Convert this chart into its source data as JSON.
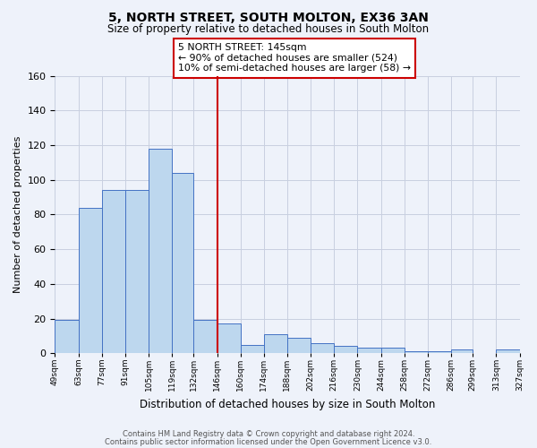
{
  "title": "5, NORTH STREET, SOUTH MOLTON, EX36 3AN",
  "subtitle": "Size of property relative to detached houses in South Molton",
  "xlabel": "Distribution of detached houses by size in South Molton",
  "ylabel": "Number of detached properties",
  "footnote1": "Contains HM Land Registry data © Crown copyright and database right 2024.",
  "footnote2": "Contains public sector information licensed under the Open Government Licence v3.0.",
  "bin_edges": [
    49,
    63,
    77,
    91,
    105,
    119,
    132,
    146,
    160,
    174,
    188,
    202,
    216,
    230,
    244,
    258,
    272,
    286,
    299,
    313,
    327
  ],
  "bin_labels": [
    "49sqm",
    "63sqm",
    "77sqm",
    "91sqm",
    "105sqm",
    "119sqm",
    "132sqm",
    "146sqm",
    "160sqm",
    "174sqm",
    "188sqm",
    "202sqm",
    "216sqm",
    "230sqm",
    "244sqm",
    "258sqm",
    "272sqm",
    "286sqm",
    "299sqm",
    "313sqm",
    "327sqm"
  ],
  "counts": [
    19,
    84,
    94,
    94,
    118,
    104,
    19,
    17,
    5,
    11,
    9,
    6,
    4,
    3,
    3,
    1,
    1,
    2,
    0,
    2
  ],
  "bar_color": "#bdd7ee",
  "bar_edge_color": "#4472c4",
  "vline_x": 146,
  "vline_color": "#cc0000",
  "annotation_lines": [
    "5 NORTH STREET: 145sqm",
    "← 90% of detached houses are smaller (524)",
    "10% of semi-detached houses are larger (58) →"
  ],
  "annotation_box_color": "#cc0000",
  "bg_color": "#eef2fa",
  "grid_color": "#c8cfe0",
  "ylim": [
    0,
    160
  ],
  "yticks": [
    0,
    20,
    40,
    60,
    80,
    100,
    120,
    140,
    160
  ]
}
